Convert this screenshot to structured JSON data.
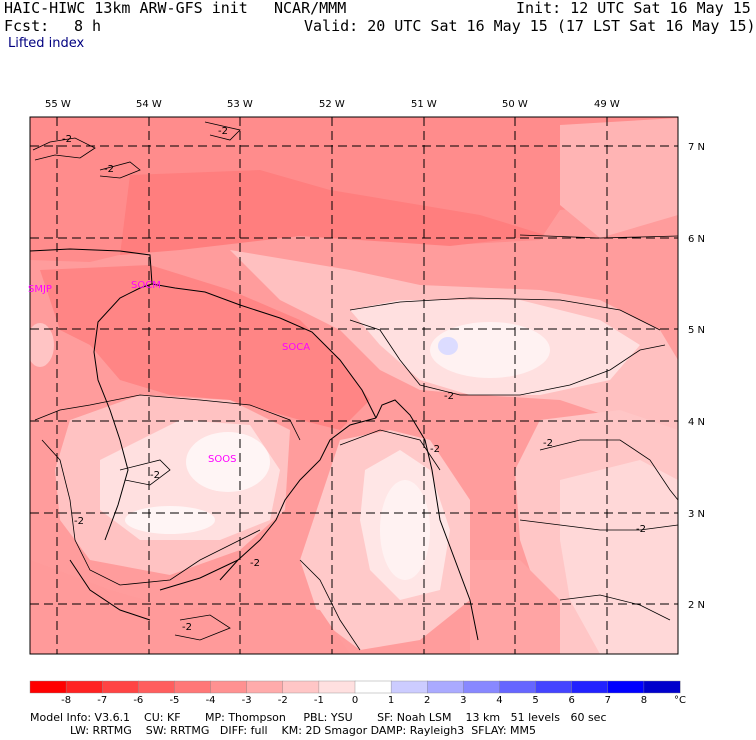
{
  "header": {
    "model": "HAIC-HIWC 13km ARW-GFS init",
    "org": "NCAR/MMM",
    "init": "Init: 12 UTC Sat 16 May 15",
    "fcst_label": "Fcst:",
    "fcst_value": "8 h",
    "valid": "Valid: 20 UTC Sat 16 May 15 (17 LST Sat 16 May 15)",
    "field": "Lifted index"
  },
  "map": {
    "lon_labels": [
      "55 W",
      "54 W",
      "53 W",
      "52 W",
      "51 W",
      "50 W",
      "49 W"
    ],
    "lat_labels": [
      "7 N",
      "6 N",
      "5 N",
      "4 N",
      "3 N",
      "2 N"
    ],
    "stations": [
      "SMJP",
      "SOCM",
      "SOCA",
      "SOOS"
    ],
    "contour_label": "-2"
  },
  "colorbar": {
    "ticks": [
      "-8",
      "-7",
      "-6",
      "-5",
      "-4",
      "-3",
      "-2",
      "-1",
      "0",
      "1",
      "2",
      "3",
      "4",
      "5",
      "6",
      "7",
      "8"
    ],
    "unit": "°C",
    "colors": [
      "#ff0000",
      "#ff2222",
      "#ff4444",
      "#ff5e5e",
      "#ff7777",
      "#ff9191",
      "#ffabab",
      "#ffc6c6",
      "#ffe0e0",
      "#ffffff",
      "#ccccff",
      "#aaaaff",
      "#8888ff",
      "#6666ff",
      "#4444ff",
      "#2222ff",
      "#0000ff",
      "#0000cc"
    ]
  },
  "footer": {
    "line1": "Model Info: V3.6.1    CU: KF       MP: Thompson     PBL: YSU       SF: Noah LSM    13 km   51 levels   60 sec",
    "line2": "LW: RRTMG    SW: RRTMG   DIFF: full    KM: 2D Smagor DAMP: Rayleigh3  SFLAY: MM5"
  }
}
